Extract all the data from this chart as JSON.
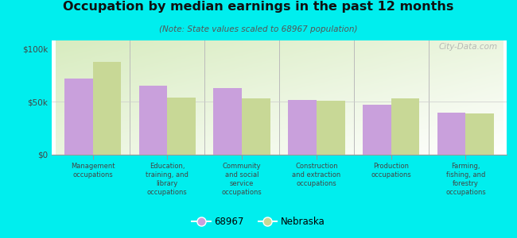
{
  "title": "Occupation by median earnings in the past 12 months",
  "subtitle": "(Note: State values scaled to 68967 population)",
  "categories": [
    "Management\noccupations",
    "Education,\ntraining, and\nlibrary\noccupations",
    "Community\nand social\nservice\noccupations",
    "Construction\nand extraction\noccupations",
    "Production\noccupations",
    "Farming,\nfishing, and\nforestry\noccupations"
  ],
  "values_68967": [
    72000,
    65000,
    63000,
    52000,
    47000,
    40000
  ],
  "values_nebraska": [
    88000,
    54000,
    53000,
    51000,
    53000,
    39000
  ],
  "color_68967": "#c9a0dc",
  "color_nebraska": "#c8d896",
  "background_outer": "#00eeee",
  "yticks": [
    0,
    50000,
    100000
  ],
  "ytick_labels": [
    "$0",
    "$50k",
    "$100k"
  ],
  "ylim": [
    0,
    108000
  ],
  "legend_68967": "68967",
  "legend_nebraska": "Nebraska",
  "watermark": "City-Data.com"
}
